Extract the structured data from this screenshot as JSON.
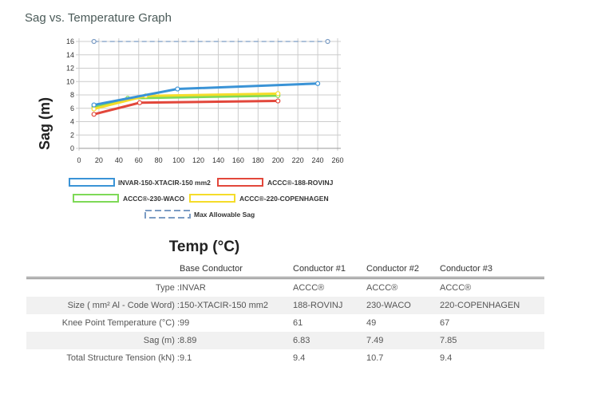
{
  "title": "Sag vs. Temperature Graph",
  "chart_data": {
    "type": "line",
    "xlabel": "Temp (°C)",
    "ylabel": "Sag (m)",
    "xlim": [
      0,
      260
    ],
    "ylim": [
      0,
      16
    ],
    "xticks": [
      0,
      20,
      40,
      60,
      80,
      100,
      120,
      140,
      160,
      180,
      200,
      220,
      240,
      260
    ],
    "yticks": [
      0,
      2,
      4,
      6,
      8,
      10,
      12,
      14,
      16
    ],
    "grid": true,
    "legend_placement": "bottom",
    "series": [
      {
        "name": "INVAR-150-XTACIR-150 mm2",
        "color": "#3a93d6",
        "points": [
          [
            15,
            6.5
          ],
          [
            99,
            8.89
          ],
          [
            240,
            9.7
          ]
        ]
      },
      {
        "name": "ACCC®-188-ROVINJ",
        "color": "#e2473b",
        "points": [
          [
            15,
            5.1
          ],
          [
            61,
            6.83
          ],
          [
            200,
            7.1
          ]
        ]
      },
      {
        "name": "ACCC®-230-WACO",
        "color": "#7ed957",
        "points": [
          [
            15,
            6.2
          ],
          [
            49,
            7.49
          ],
          [
            200,
            7.9
          ]
        ]
      },
      {
        "name": "ACCC®-220-COPENHAGEN",
        "color": "#f5dc2a",
        "points": [
          [
            15,
            5.9
          ],
          [
            67,
            7.85
          ],
          [
            200,
            8.2
          ]
        ]
      },
      {
        "name": "Max Allowable Sag",
        "color": "#7b9cc4",
        "dashed": true,
        "points": [
          [
            15,
            16
          ],
          [
            250,
            16
          ]
        ]
      }
    ]
  },
  "table": {
    "headers": [
      "",
      "Base Conductor",
      "Conductor #1",
      "Conductor #2",
      "Conductor #3"
    ],
    "rows": [
      [
        "Type :",
        "INVAR",
        "ACCC®",
        "ACCC®",
        "ACCC®"
      ],
      [
        "Size ( mm² Al - Code Word) :",
        "150-XTACIR-150 mm2",
        "188-ROVINJ",
        "230-WACO",
        "220-COPENHAGEN"
      ],
      [
        "Knee Point Temperature (°C) :",
        "99",
        "61",
        "49",
        "67"
      ],
      [
        "Sag (m) :",
        "8.89",
        "6.83",
        "7.49",
        "7.85"
      ],
      [
        "Total Structure Tension (kN) :",
        "9.1",
        "9.4",
        "10.7",
        "9.4"
      ]
    ]
  }
}
